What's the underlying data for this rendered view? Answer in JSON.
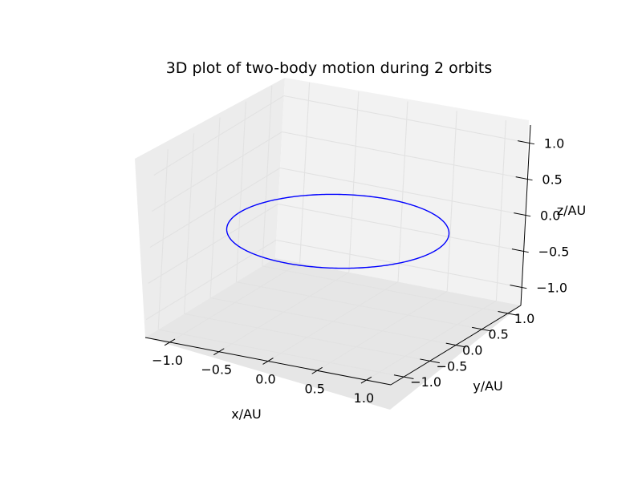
{
  "chart_data": {
    "type": "line",
    "projection": "3d",
    "title": "3D plot of two-body motion during 2 orbits",
    "xlabel": "x/AU",
    "ylabel": "y/AU",
    "zlabel": "z/AU",
    "xlim": [
      -1.25,
      1.25
    ],
    "ylim": [
      -1.25,
      1.25
    ],
    "zlim": [
      -1.25,
      1.25
    ],
    "xticks": [
      -1.0,
      -0.5,
      0.0,
      0.5,
      1.0
    ],
    "yticks": [
      -1.0,
      -0.5,
      0.0,
      0.5,
      1.0
    ],
    "zticks": [
      -1.0,
      -0.5,
      0.0,
      0.5,
      1.0
    ],
    "xtick_labels": [
      "−1.0",
      "−0.5",
      "0.0",
      "0.5",
      "1.0"
    ],
    "ytick_labels": [
      "−1.0",
      "−0.5",
      "0.0",
      "0.5",
      "1.0"
    ],
    "ztick_labels": [
      "−1.0",
      "−0.5",
      "0.0",
      "0.5",
      "1.0"
    ],
    "grid": true,
    "series": [
      {
        "color": "#0000ff",
        "orbit": {
          "center": [
            0,
            0,
            0
          ],
          "radius": 1.0,
          "z": 0.0,
          "orbits": 2
        }
      }
    ]
  }
}
